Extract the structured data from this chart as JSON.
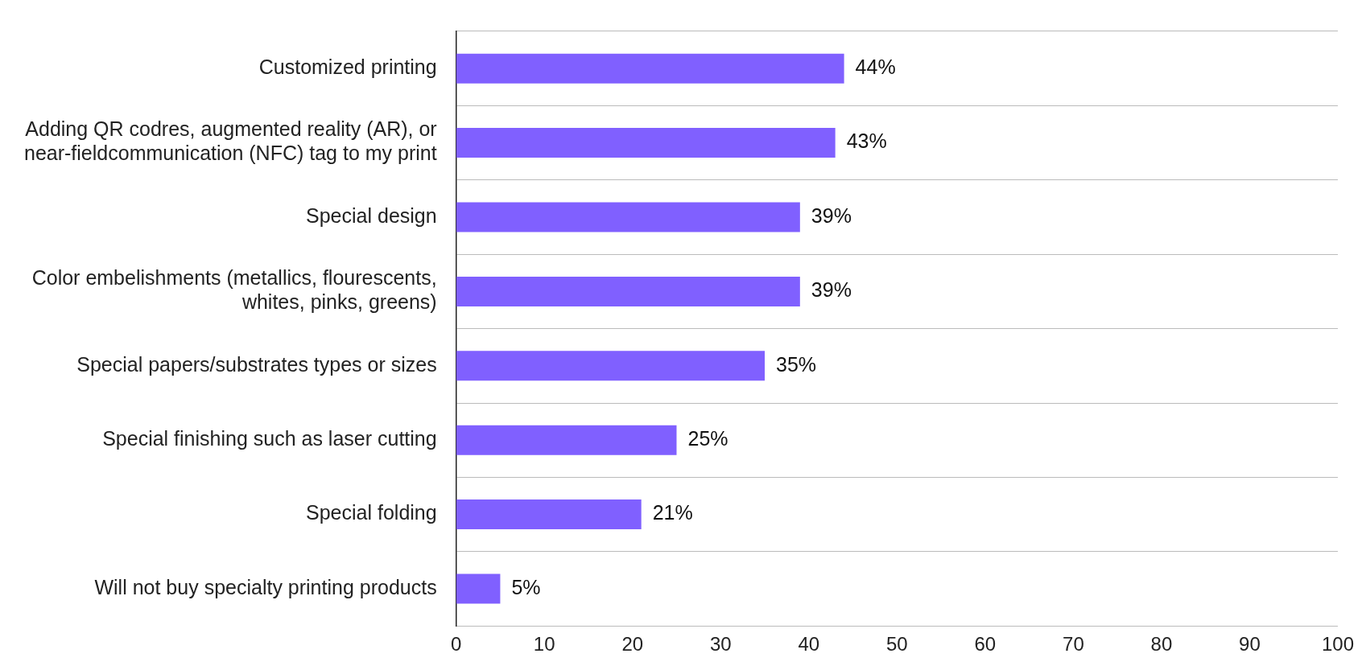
{
  "chart_data": {
    "type": "bar",
    "orientation": "horizontal",
    "categories": [
      [
        "Customized printing"
      ],
      [
        "Adding QR codres, augmented reality (AR), or",
        "near-fieldcommunication (NFC) tag to my print"
      ],
      [
        "Special design"
      ],
      [
        "Color embelishments (metallics, flourescents,",
        "whites, pinks, greens)"
      ],
      [
        "Special papers/substrates types or sizes"
      ],
      [
        "Special finishing such as laser cutting"
      ],
      [
        "Special folding"
      ],
      [
        "Will not buy specialty printing products"
      ]
    ],
    "values": [
      44,
      43,
      39,
      39,
      35,
      25,
      21,
      5
    ],
    "value_labels": [
      "44%",
      "43%",
      "39%",
      "39%",
      "35%",
      "25%",
      "21%",
      "5%"
    ],
    "color": "#8060ff",
    "xlim": [
      0,
      100
    ],
    "xticks": [
      0,
      10,
      20,
      30,
      40,
      50,
      60,
      70,
      80,
      90,
      100
    ],
    "grid": "y",
    "legend": false
  }
}
